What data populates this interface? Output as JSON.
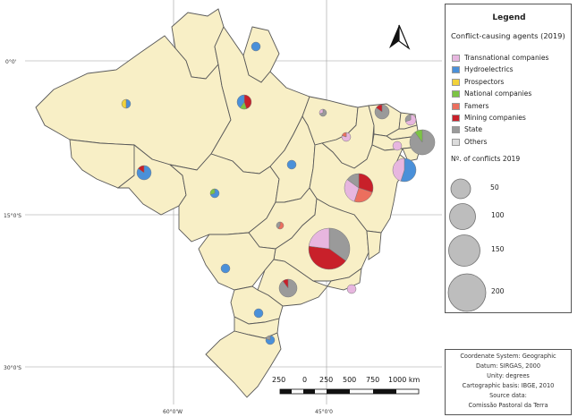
{
  "legend": {
    "title": "Legend",
    "subtitle": "Conflict-causing agents (2019)",
    "categories": [
      {
        "label": "Transnational companies",
        "color": "#e7b6df"
      },
      {
        "label": "Hydroelectrics",
        "color": "#4a90d9"
      },
      {
        "label": "Prospectors",
        "color": "#f2d23a"
      },
      {
        "label": "National companies",
        "color": "#7cc444"
      },
      {
        "label": "Famers",
        "color": "#ec6f5e"
      },
      {
        "label": "Mining companies",
        "color": "#c8202a"
      },
      {
        "label": "State",
        "color": "#9a9a9a"
      },
      {
        "label": "Others",
        "color": "#dcdcdc"
      }
    ],
    "size_title": "Nº. of conflicts 2019",
    "size_classes": [
      {
        "label": "50",
        "value": 50
      },
      {
        "label": "100",
        "value": 100
      },
      {
        "label": "150",
        "value": 150
      },
      {
        "label": "200",
        "value": 200
      }
    ]
  },
  "source": {
    "lines": [
      "Coordenate System: Geographic",
      "Datum: SIRGAS, 2000",
      "Unity: degrees",
      "Cartographic basis: IBGE, 2010",
      "Source data:",
      "Comissão Pastoral da Terra"
    ]
  },
  "scalebar": {
    "labels": [
      "250",
      "0",
      "250",
      "500",
      "750",
      "1000 km"
    ]
  },
  "coordinates": {
    "lat_labels": [
      "0°0'",
      "15°0'S",
      "30°0'S"
    ],
    "lon_labels": [
      "60°0'W",
      "45°0'0"
    ]
  },
  "north_arrow": {
    "icon": "north-arrow-icon"
  }
}
